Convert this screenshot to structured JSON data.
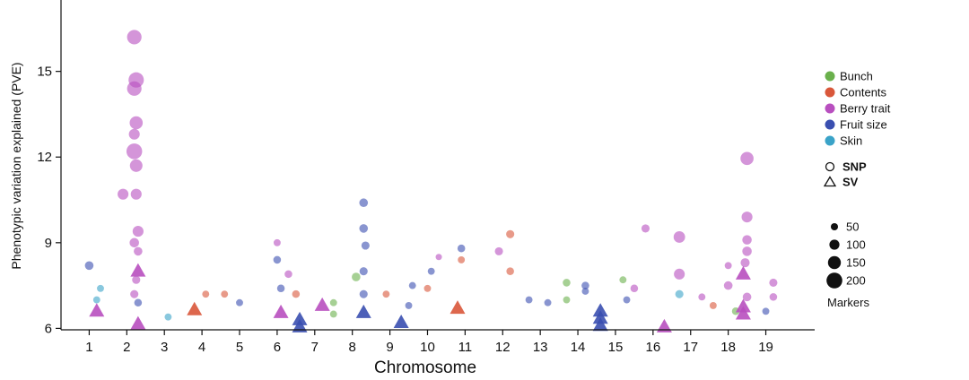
{
  "chart_data": {
    "type": "scatter",
    "xlabel": "Chromosome",
    "ylabel": "Phenotypic variation explained (PVE)",
    "categories": [
      "1",
      "2",
      "3",
      "4",
      "5",
      "6",
      "7",
      "8",
      "9",
      "10",
      "11",
      "12",
      "13",
      "14",
      "15",
      "16",
      "17",
      "18",
      "19"
    ],
    "xlim": [
      0.25,
      20.3
    ],
    "ylim": [
      5.95,
      17.5
    ],
    "yticks": [
      6,
      9,
      12,
      15
    ],
    "legend": {
      "placement": "right",
      "trait_types": [
        {
          "name": "Bunch",
          "color": "#6ab04c"
        },
        {
          "name": "Contents",
          "color": "#d9573a"
        },
        {
          "name": "Berry trait",
          "color": "#b84fbf"
        },
        {
          "name": "Fruit size",
          "color": "#3a4fb0"
        },
        {
          "name": "Skin",
          "color": "#3aa3c8"
        }
      ],
      "marker_types": [
        {
          "name": "SNP",
          "shape": "circle"
        },
        {
          "name": "SV",
          "shape": "triangle"
        }
      ],
      "size_title": "Markers",
      "sizes": [
        50,
        100,
        150,
        200
      ]
    },
    "sv_points": [
      {
        "x": 1.2,
        "y": 6.6,
        "trait": "Berry trait"
      },
      {
        "x": 2.3,
        "y": 8.0,
        "trait": "Berry trait"
      },
      {
        "x": 2.3,
        "y": 6.15,
        "trait": "Berry trait"
      },
      {
        "x": 3.8,
        "y": 6.65,
        "trait": "Contents"
      },
      {
        "x": 6.1,
        "y": 6.55,
        "trait": "Berry trait"
      },
      {
        "x": 6.6,
        "y": 6.3,
        "trait": "Fruit size"
      },
      {
        "x": 6.6,
        "y": 6.05,
        "trait": "Fruit size"
      },
      {
        "x": 7.2,
        "y": 6.8,
        "trait": "Berry trait"
      },
      {
        "x": 8.3,
        "y": 6.55,
        "trait": "Fruit size"
      },
      {
        "x": 9.3,
        "y": 6.2,
        "trait": "Fruit size"
      },
      {
        "x": 10.8,
        "y": 6.7,
        "trait": "Contents"
      },
      {
        "x": 14.6,
        "y": 6.6,
        "trait": "Fruit size"
      },
      {
        "x": 14.6,
        "y": 6.35,
        "trait": "Fruit size"
      },
      {
        "x": 14.6,
        "y": 6.1,
        "trait": "Fruit size"
      },
      {
        "x": 16.3,
        "y": 6.05,
        "trait": "Berry trait"
      },
      {
        "x": 18.4,
        "y": 7.9,
        "trait": "Berry trait"
      },
      {
        "x": 18.4,
        "y": 6.75,
        "trait": "Berry trait"
      },
      {
        "x": 18.4,
        "y": 6.5,
        "trait": "Berry trait"
      }
    ],
    "snp_points": [
      {
        "x": 2.2,
        "y": 16.2,
        "trait": "Berry trait",
        "markers": 130
      },
      {
        "x": 2.25,
        "y": 14.7,
        "trait": "Berry trait",
        "markers": 150
      },
      {
        "x": 2.2,
        "y": 14.4,
        "trait": "Berry trait",
        "markers": 130
      },
      {
        "x": 2.25,
        "y": 13.2,
        "trait": "Berry trait",
        "markers": 100
      },
      {
        "x": 2.2,
        "y": 12.8,
        "trait": "Berry trait",
        "markers": 60
      },
      {
        "x": 2.2,
        "y": 12.2,
        "trait": "Berry trait",
        "markers": 160
      },
      {
        "x": 2.25,
        "y": 11.7,
        "trait": "Berry trait",
        "markers": 90
      },
      {
        "x": 2.25,
        "y": 10.7,
        "trait": "Berry trait",
        "markers": 60
      },
      {
        "x": 1.9,
        "y": 10.7,
        "trait": "Berry trait",
        "markers": 60
      },
      {
        "x": 2.3,
        "y": 9.4,
        "trait": "Berry trait",
        "markers": 60
      },
      {
        "x": 2.2,
        "y": 9.0,
        "trait": "Berry trait",
        "markers": 40
      },
      {
        "x": 2.3,
        "y": 8.7,
        "trait": "Berry trait",
        "markers": 30
      },
      {
        "x": 2.25,
        "y": 7.7,
        "trait": "Berry trait",
        "markers": 25
      },
      {
        "x": 2.2,
        "y": 7.2,
        "trait": "Berry trait",
        "markers": 25
      },
      {
        "x": 2.3,
        "y": 6.9,
        "trait": "Fruit size",
        "markers": 20
      },
      {
        "x": 1.0,
        "y": 8.2,
        "trait": "Fruit size",
        "markers": 30
      },
      {
        "x": 10.3,
        "y": 8.5,
        "trait": "Berry trait",
        "markers": 10
      },
      {
        "x": 8.3,
        "y": 10.4,
        "trait": "Fruit size",
        "markers": 30
      },
      {
        "x": 8.3,
        "y": 9.5,
        "trait": "Fruit size",
        "markers": 30
      },
      {
        "x": 8.35,
        "y": 8.9,
        "trait": "Fruit size",
        "markers": 25
      },
      {
        "x": 8.3,
        "y": 8.0,
        "trait": "Fruit size",
        "markers": 25
      },
      {
        "x": 8.1,
        "y": 7.8,
        "trait": "Bunch",
        "markers": 30
      },
      {
        "x": 8.3,
        "y": 7.2,
        "trait": "Fruit size",
        "markers": 25
      },
      {
        "x": 6.0,
        "y": 9.0,
        "trait": "Berry trait",
        "markers": 15
      },
      {
        "x": 6.0,
        "y": 8.4,
        "trait": "Fruit size",
        "markers": 20
      },
      {
        "x": 6.3,
        "y": 7.9,
        "trait": "Berry trait",
        "markers": 20
      },
      {
        "x": 6.1,
        "y": 7.4,
        "trait": "Fruit size",
        "markers": 20
      },
      {
        "x": 6.5,
        "y": 7.2,
        "trait": "Contents",
        "markers": 20
      },
      {
        "x": 10.9,
        "y": 8.8,
        "trait": "Fruit size",
        "markers": 20
      },
      {
        "x": 10.9,
        "y": 8.4,
        "trait": "Contents",
        "markers": 15
      },
      {
        "x": 10.1,
        "y": 8.0,
        "trait": "Fruit size",
        "markers": 15
      },
      {
        "x": 10.0,
        "y": 7.4,
        "trait": "Contents",
        "markers": 15
      },
      {
        "x": 11.9,
        "y": 8.7,
        "trait": "Berry trait",
        "markers": 25
      },
      {
        "x": 12.2,
        "y": 9.3,
        "trait": "Contents",
        "markers": 25
      },
      {
        "x": 12.2,
        "y": 8.0,
        "trait": "Contents",
        "markers": 20
      },
      {
        "x": 13.7,
        "y": 7.6,
        "trait": "Bunch",
        "markers": 20
      },
      {
        "x": 14.2,
        "y": 7.5,
        "trait": "Fruit size",
        "markers": 20
      },
      {
        "x": 15.2,
        "y": 7.7,
        "trait": "Bunch",
        "markers": 15
      },
      {
        "x": 15.5,
        "y": 7.4,
        "trait": "Berry trait",
        "markers": 20
      },
      {
        "x": 15.8,
        "y": 9.5,
        "trait": "Berry trait",
        "markers": 25
      },
      {
        "x": 16.7,
        "y": 9.2,
        "trait": "Berry trait",
        "markers": 70
      },
      {
        "x": 16.7,
        "y": 7.9,
        "trait": "Berry trait",
        "markers": 60
      },
      {
        "x": 16.7,
        "y": 7.2,
        "trait": "Skin",
        "markers": 25
      },
      {
        "x": 18.0,
        "y": 8.2,
        "trait": "Berry trait",
        "markers": 15
      },
      {
        "x": 18.0,
        "y": 7.5,
        "trait": "Berry trait",
        "markers": 30
      },
      {
        "x": 18.5,
        "y": 11.95,
        "trait": "Berry trait",
        "markers": 100
      },
      {
        "x": 18.5,
        "y": 9.9,
        "trait": "Berry trait",
        "markers": 60
      },
      {
        "x": 18.5,
        "y": 9.1,
        "trait": "Berry trait",
        "markers": 40
      },
      {
        "x": 18.5,
        "y": 8.7,
        "trait": "Berry trait",
        "markers": 40
      },
      {
        "x": 18.45,
        "y": 8.3,
        "trait": "Berry trait",
        "markers": 35
      },
      {
        "x": 18.5,
        "y": 7.1,
        "trait": "Berry trait",
        "markers": 30
      },
      {
        "x": 19.2,
        "y": 7.6,
        "trait": "Berry trait",
        "markers": 25
      },
      {
        "x": 19.2,
        "y": 7.1,
        "trait": "Berry trait",
        "markers": 20
      },
      {
        "x": 1.3,
        "y": 7.4,
        "trait": "Skin",
        "markers": 15
      },
      {
        "x": 1.2,
        "y": 7.0,
        "trait": "Skin",
        "markers": 15
      },
      {
        "x": 4.1,
        "y": 7.2,
        "trait": "Contents",
        "markers": 15
      },
      {
        "x": 4.6,
        "y": 7.2,
        "trait": "Contents",
        "markers": 15
      },
      {
        "x": 5.0,
        "y": 6.9,
        "trait": "Fruit size",
        "markers": 15
      },
      {
        "x": 3.1,
        "y": 6.4,
        "trait": "Skin",
        "markers": 15
      },
      {
        "x": 7.5,
        "y": 6.9,
        "trait": "Bunch",
        "markers": 15
      },
      {
        "x": 7.5,
        "y": 6.5,
        "trait": "Bunch",
        "markers": 15
      },
      {
        "x": 8.9,
        "y": 7.2,
        "trait": "Contents",
        "markers": 15
      },
      {
        "x": 9.6,
        "y": 7.5,
        "trait": "Fruit size",
        "markers": 15
      },
      {
        "x": 9.5,
        "y": 6.8,
        "trait": "Fruit size",
        "markers": 15
      },
      {
        "x": 12.7,
        "y": 7.0,
        "trait": "Fruit size",
        "markers": 15
      },
      {
        "x": 13.2,
        "y": 6.9,
        "trait": "Fruit size",
        "markers": 15
      },
      {
        "x": 13.7,
        "y": 7.0,
        "trait": "Bunch",
        "markers": 15
      },
      {
        "x": 14.2,
        "y": 7.3,
        "trait": "Fruit size",
        "markers": 15
      },
      {
        "x": 15.3,
        "y": 7.0,
        "trait": "Fruit size",
        "markers": 15
      },
      {
        "x": 17.3,
        "y": 7.1,
        "trait": "Berry trait",
        "markers": 15
      },
      {
        "x": 17.6,
        "y": 6.8,
        "trait": "Contents",
        "markers": 15
      },
      {
        "x": 18.2,
        "y": 6.6,
        "trait": "Bunch",
        "markers": 20
      },
      {
        "x": 19.0,
        "y": 6.6,
        "trait": "Fruit size",
        "markers": 15
      }
    ]
  }
}
